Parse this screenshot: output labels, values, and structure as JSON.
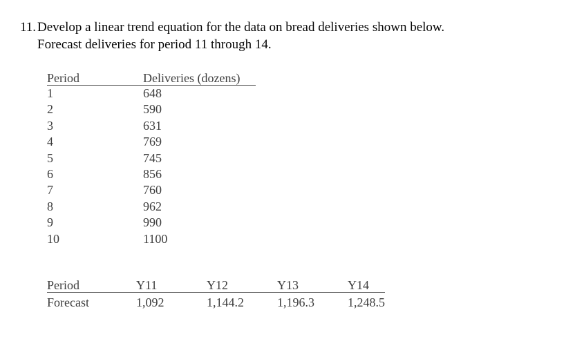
{
  "problem": {
    "number": "11.",
    "line1": "Develop a linear trend equation for the data on bread deliveries shown below.",
    "line2": "Forecast deliveries for period 11 through 14."
  },
  "deliveries_table": {
    "period_header": "Period",
    "deliveries_header": "Deliveries (dozens)",
    "rows": [
      {
        "period": "1",
        "deliveries": "648"
      },
      {
        "period": "2",
        "deliveries": "590"
      },
      {
        "period": "3",
        "deliveries": "631"
      },
      {
        "period": "4",
        "deliveries": "769"
      },
      {
        "period": "5",
        "deliveries": "745"
      },
      {
        "period": "6",
        "deliveries": "856"
      },
      {
        "period": "7",
        "deliveries": "760"
      },
      {
        "period": "8",
        "deliveries": "962"
      },
      {
        "period": "9",
        "deliveries": "990"
      },
      {
        "period": "10",
        "deliveries": "1100"
      }
    ]
  },
  "forecast_table": {
    "period_header": "Period",
    "column_headers": [
      "Y11",
      "Y12",
      "Y13",
      "Y14"
    ],
    "row_label": "Forecast",
    "values": [
      "1,092",
      "1,144.2",
      "1,196.3",
      "1,248.5"
    ]
  }
}
